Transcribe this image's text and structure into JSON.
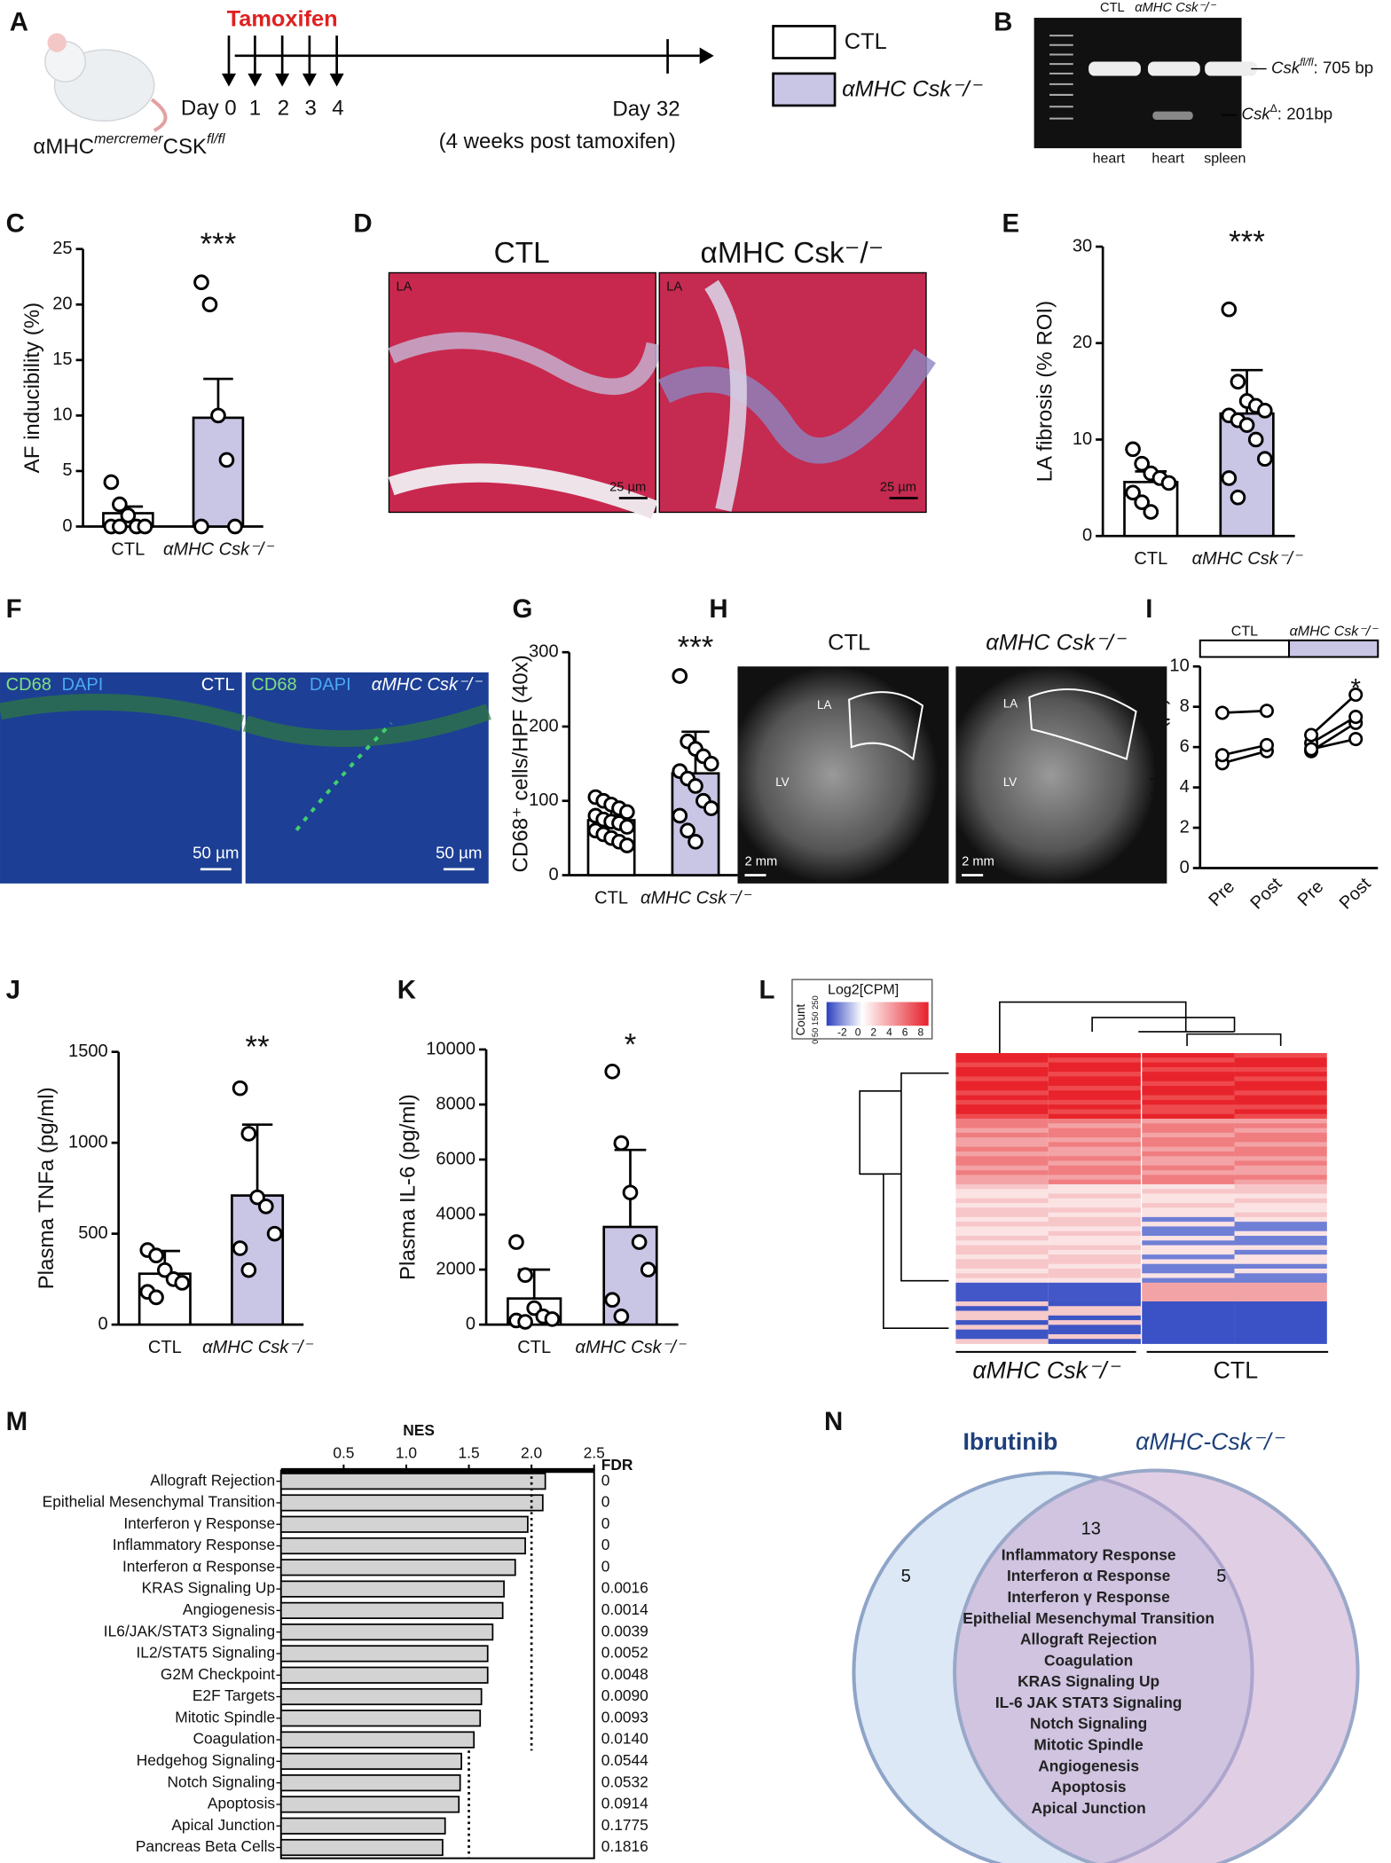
{
  "panel_labels": [
    "A",
    "B",
    "C",
    "D",
    "E",
    "F",
    "G",
    "H",
    "I",
    "J",
    "K",
    "L",
    "M",
    "N"
  ],
  "timeline": {
    "drug": "Tamoxifen",
    "days": [
      "Day 0",
      "1",
      "2",
      "3",
      "4"
    ],
    "end_day": "Day 32",
    "end_note": "(4 weeks post tamoxifen)",
    "mouse": [
      "αMHC",
      "mercremer",
      "CSK",
      "fl/fl"
    ],
    "legend": [
      "CTL",
      "αMHC Csk⁻/⁻"
    ]
  },
  "gel": {
    "lanes_top": [
      "CTL",
      "αMHC Csk⁻/⁻"
    ],
    "lanes_bottom": [
      "heart",
      "heart",
      "spleen"
    ],
    "bands": [
      [
        "Csk",
        "fl/fl",
        ": 705 bp"
      ],
      [
        "Csk",
        "Δ",
        ": 201bp"
      ]
    ]
  },
  "histology": {
    "titles": [
      "CTL",
      "αMHC Csk⁻/⁻"
    ],
    "region": "LA",
    "scale": "25 µm"
  },
  "immuno": {
    "stains": [
      "CD68",
      "DAPI"
    ],
    "groups": [
      "CTL",
      "αMHC Csk⁻/⁻"
    ],
    "scale": "50 µm"
  },
  "mri": {
    "titles": [
      "CTL",
      "αMHC Csk⁻/⁻"
    ],
    "labels": [
      "LA",
      "LV"
    ],
    "scale": "2 mm"
  },
  "heatmap": {
    "key_title": "Log2[CPM]",
    "count_label": "Count",
    "count_ticks": "0 50 150 250",
    "key_ticks": [
      -2,
      0,
      2,
      4,
      6,
      8
    ],
    "key_range": [
      -4,
      9
    ],
    "groups": [
      "αMHC Csk⁻/⁻",
      "CTL"
    ]
  },
  "venn": {
    "sets": [
      "Ibrutinib",
      "αMHC-Csk⁻/⁻"
    ],
    "counts": [
      5,
      13,
      5
    ],
    "shared": [
      "Inflammatory Response",
      "Interferon α Response",
      "Interferon γ Response",
      "Epithelial Mesenchymal Transition",
      "Allograft Rejection",
      "Coagulation",
      "KRAS Signaling Up",
      "IL-6 JAK STAT3 Signaling",
      "Notch Signaling",
      "Mitotic Spindle",
      "Angiogenesis",
      "Apoptosis",
      "Apical Junction"
    ]
  },
  "chart_data": [
    {
      "type": "bar",
      "ylabel": "AF inducibility (%)",
      "categories": [
        "CTL",
        "αMHC Csk⁻/⁻"
      ],
      "values": [
        1.2,
        9.8
      ],
      "errors": [
        0.6,
        3.5
      ],
      "points": [
        [
          4,
          2,
          1,
          0,
          0,
          0,
          0
        ],
        [
          22,
          20,
          10,
          6,
          0,
          0
        ]
      ],
      "colors": [
        "#ffffff",
        "#c9c5e5"
      ],
      "ylim": [
        0,
        25
      ],
      "yticks": [
        0,
        5,
        10,
        15,
        20,
        25
      ],
      "annotation": "***"
    },
    {
      "type": "bar",
      "ylabel": "LA fibrosis (% ROI)",
      "categories": [
        "CTL",
        "αMHC Csk⁻/⁻"
      ],
      "values": [
        5.6,
        12.7
      ],
      "errors": [
        1.1,
        4.5
      ],
      "points": [
        [
          9,
          7.5,
          6.5,
          6,
          5.5,
          4.5,
          3.5,
          2.5
        ],
        [
          23.5,
          16,
          14,
          13.5,
          13,
          12.5,
          12,
          11.5,
          10,
          8,
          6,
          4
        ]
      ],
      "colors": [
        "#ffffff",
        "#c9c5e5"
      ],
      "ylim": [
        0,
        30
      ],
      "yticks": [
        0,
        10,
        20,
        30
      ],
      "annotation": "***"
    },
    {
      "type": "bar",
      "ylabel": "CD68⁺ cells/HPF (40x)",
      "categories": [
        "CTL",
        "αMHC Csk⁻/⁻"
      ],
      "values": [
        74,
        137
      ],
      "errors": [
        20,
        56
      ],
      "points": [
        [
          105,
          100,
          95,
          90,
          85,
          80,
          75,
          72,
          70,
          65,
          60,
          55,
          50,
          45,
          40
        ],
        [
          268,
          180,
          170,
          160,
          150,
          140,
          130,
          120,
          100,
          90,
          80,
          60,
          45
        ]
      ],
      "colors": [
        "#ffffff",
        "#c9c5e5"
      ],
      "ylim": [
        0,
        300
      ],
      "yticks": [
        0,
        100,
        200,
        300
      ],
      "annotation": "***"
    },
    {
      "type": "paired",
      "ylabel": "LA Volume (µl)",
      "categories": [
        "Pre",
        "Post",
        "Pre",
        "Post"
      ],
      "series": [
        {
          "name": "CTL",
          "color": "#ffffff",
          "values": [
            [
              5.2,
              5.8
            ],
            [
              5.6,
              6.1
            ],
            [
              7.7,
              7.8
            ]
          ]
        },
        {
          "name": "αMHC Csk⁻/⁻",
          "color": "#c9c5e5",
          "values": [
            [
              5.8,
              7.2
            ],
            [
              6.2,
              7.5
            ],
            [
              6.6,
              8.6
            ],
            [
              5.9,
              6.4
            ]
          ]
        }
      ],
      "ylim": [
        0,
        10
      ],
      "yticks": [
        0,
        2,
        4,
        6,
        8,
        10
      ],
      "annotation": "*"
    },
    {
      "type": "bar",
      "ylabel": "Plasma TNFa (pg/ml)",
      "categories": [
        "CTL",
        "αMHC Csk⁻/⁻"
      ],
      "values": [
        280,
        710
      ],
      "errors": [
        125,
        390
      ],
      "points": [
        [
          410,
          380,
          300,
          250,
          230,
          180,
          150
        ],
        [
          1300,
          1050,
          700,
          650,
          500,
          420,
          300
        ]
      ],
      "colors": [
        "#ffffff",
        "#c9c5e5"
      ],
      "ylim": [
        0,
        1500
      ],
      "yticks": [
        0,
        500,
        1000,
        1500
      ],
      "annotation": "**"
    },
    {
      "type": "bar",
      "ylabel": "Plasma IL-6 (pg/ml)",
      "categories": [
        "CTL",
        "αMHC Csk⁻/⁻"
      ],
      "values": [
        950,
        3550
      ],
      "errors": [
        1050,
        2800
      ],
      "points": [
        [
          3000,
          1800,
          600,
          300,
          200,
          150,
          100
        ],
        [
          9200,
          6600,
          4800,
          3000,
          2000,
          900,
          300
        ]
      ],
      "colors": [
        "#ffffff",
        "#c9c5e5"
      ],
      "ylim": [
        0,
        10000
      ],
      "yticks": [
        0,
        2000,
        4000,
        6000,
        8000,
        10000
      ],
      "annotation": "*"
    },
    {
      "type": "hbar",
      "xlabel": "NES",
      "fdr_title": "FDR",
      "categories": [
        "Allograft Rejection",
        "Epithelial Mesenchymal Transition",
        "Interferon γ Response",
        "Inflammatory Response",
        "Interferon α Response",
        "KRAS Signaling Up",
        "Angiogenesis",
        "IL6/JAK/STAT3 Signaling",
        "IL2/STAT5 Signaling",
        "G2M Checkpoint",
        "E2F Targets",
        "Mitotic Spindle",
        "Coagulation",
        "Hedgehog Signaling",
        "Notch Signaling",
        "Apoptosis",
        "Apical Junction",
        "Pancreas Beta Cells"
      ],
      "values": [
        2.11,
        2.09,
        1.97,
        1.95,
        1.87,
        1.78,
        1.77,
        1.69,
        1.65,
        1.65,
        1.6,
        1.59,
        1.54,
        1.44,
        1.43,
        1.42,
        1.31,
        1.29
      ],
      "fdr": [
        "0",
        "0",
        "0",
        "0",
        "0",
        "0.0016",
        "0.0014",
        "0.0039",
        "0.0052",
        "0.0048",
        "0.0090",
        "0.0093",
        "0.0140",
        "0.0544",
        "0.0532",
        "0.0914",
        "0.1775",
        "0.1816"
      ],
      "color": "#d3d3d3",
      "xlim": [
        0,
        2.5
      ],
      "xticks": [
        0.5,
        {
          "value": 1,
          "label": "1.0"
        },
        1.5,
        {
          "value": 2,
          "label": "2.0"
        },
        2.5
      ],
      "reference_lines": [
        2,
        1.5
      ]
    }
  ]
}
